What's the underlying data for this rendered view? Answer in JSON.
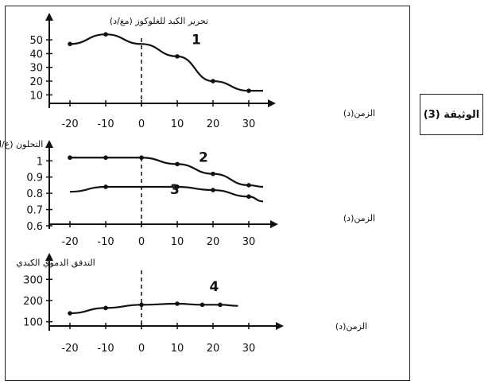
{
  "document_label": "الوثيقة (3)",
  "chart_data": [
    {
      "type": "line",
      "ylabel": "تحرير الكبد للغلوكوز (مغ/د)",
      "xlabel": "الزمن(د)",
      "x_ticks": [
        -20,
        -10,
        0,
        10,
        20,
        30
      ],
      "y_ticks": [
        10,
        20,
        30,
        40,
        50
      ],
      "xlim": [
        -24,
        38
      ],
      "ylim": [
        5,
        57
      ],
      "grid": false,
      "series": [
        {
          "name": "1",
          "x": [
            -20,
            -10,
            0,
            10,
            20,
            30,
            34
          ],
          "y": [
            47,
            54,
            47,
            38,
            20,
            13,
            13
          ],
          "markers": [
            true,
            true,
            false,
            true,
            true,
            true,
            false
          ]
        }
      ]
    },
    {
      "type": "line",
      "ylabel": "التحلون (غ/ل)",
      "xlabel": "الزمن(د)",
      "x_ticks": [
        -20,
        -10,
        0,
        10,
        20,
        30
      ],
      "y_ticks": [
        "0.6",
        "0.7",
        "0.8",
        "0.9",
        "1"
      ],
      "xlim": [
        -24,
        38
      ],
      "ylim": [
        0.6,
        1.07
      ],
      "grid": false,
      "series": [
        {
          "name": "2",
          "x": [
            -20,
            -10,
            0,
            10,
            20,
            30,
            34
          ],
          "y": [
            1.02,
            1.02,
            1.02,
            0.98,
            0.92,
            0.85,
            0.84
          ],
          "markers": [
            true,
            true,
            true,
            true,
            true,
            true,
            false
          ]
        },
        {
          "name": "3",
          "x": [
            -20,
            -10,
            0,
            10,
            20,
            30,
            34
          ],
          "y": [
            0.81,
            0.84,
            0.84,
            0.84,
            0.82,
            0.78,
            0.75
          ],
          "markers": [
            false,
            true,
            false,
            true,
            true,
            true,
            false
          ]
        }
      ]
    },
    {
      "type": "line",
      "ylabel": "التدفق الدموي الكبدي",
      "xlabel": "الزمن(د)",
      "x_ticks": [
        -20,
        -10,
        0,
        10,
        20,
        30
      ],
      "y_ticks": [
        100,
        200,
        300
      ],
      "xlim": [
        -24,
        36
      ],
      "ylim": [
        50,
        380
      ],
      "grid": false,
      "series": [
        {
          "name": "4",
          "x": [
            -20,
            -10,
            0,
            10,
            17,
            22,
            27
          ],
          "y": [
            140,
            165,
            180,
            185,
            180,
            180,
            175
          ],
          "markers": [
            true,
            true,
            true,
            true,
            true,
            true,
            false
          ]
        }
      ]
    }
  ]
}
